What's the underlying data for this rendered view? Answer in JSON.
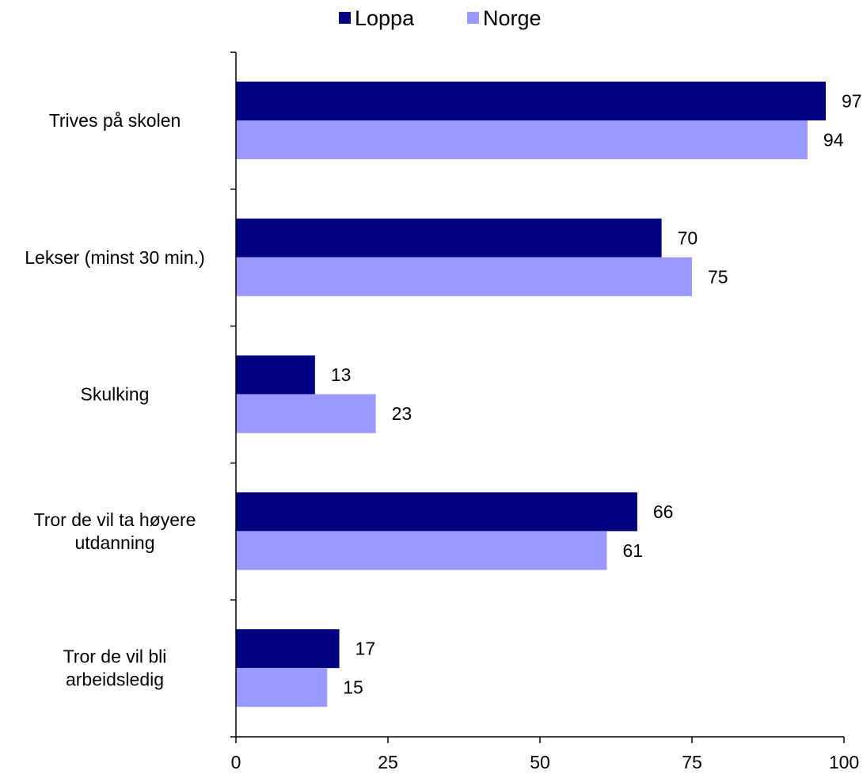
{
  "chart_data": {
    "type": "bar",
    "orientation": "horizontal",
    "categories": [
      [
        "Trives på skolen"
      ],
      [
        "Lekser (minst 30 min.)"
      ],
      [
        "Skulking"
      ],
      [
        "Tror de vil ta høyere",
        "utdanning"
      ],
      [
        "Tror de vil bli",
        "arbeidsledig"
      ]
    ],
    "series": [
      {
        "name": "Loppa",
        "color": "#000080",
        "values": [
          97,
          70,
          13,
          66,
          17
        ]
      },
      {
        "name": "Norge",
        "color": "#9999FF",
        "values": [
          94,
          75,
          23,
          61,
          15
        ]
      }
    ],
    "xlim": [
      0,
      100
    ],
    "xticks": [
      "0",
      "25",
      "50",
      "75",
      "100"
    ],
    "grid": false,
    "legend_position": "top"
  }
}
